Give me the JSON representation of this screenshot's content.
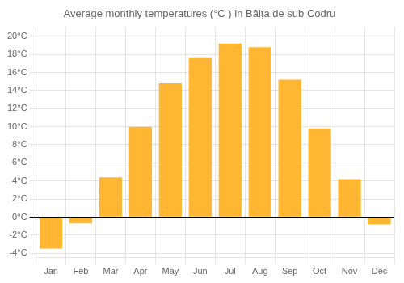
{
  "chart_data": {
    "type": "bar",
    "title": "Average monthly temperatures (°C ) in Băița de sub Codru",
    "categories": [
      "Jan",
      "Feb",
      "Mar",
      "Apr",
      "May",
      "Jun",
      "Jul",
      "Aug",
      "Sep",
      "Oct",
      "Nov",
      "Dec"
    ],
    "values": [
      -3.5,
      -0.7,
      4.4,
      10.0,
      14.8,
      17.6,
      19.2,
      18.8,
      15.2,
      9.8,
      4.2,
      -0.8
    ],
    "color": "#FFB733",
    "ylim": [
      -4.5,
      21
    ],
    "yticks": [
      {
        "value": -4,
        "label": "-4°C"
      },
      {
        "value": -2,
        "label": "-2°C"
      },
      {
        "value": 0,
        "label": "0°C"
      },
      {
        "value": 2,
        "label": "2°C"
      },
      {
        "value": 4,
        "label": "4°C"
      },
      {
        "value": 6,
        "label": "6°C"
      },
      {
        "value": 8,
        "label": "8°C"
      },
      {
        "value": 10,
        "label": "10°C"
      },
      {
        "value": 12,
        "label": "12°C"
      },
      {
        "value": 14,
        "label": "14°C"
      },
      {
        "value": 16,
        "label": "16°C"
      },
      {
        "value": 18,
        "label": "18°C"
      },
      {
        "value": 20,
        "label": "20°C"
      }
    ],
    "grid": true
  }
}
